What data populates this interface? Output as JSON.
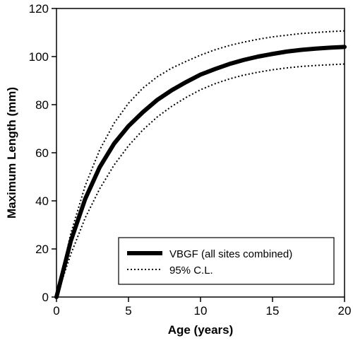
{
  "chart_data": {
    "type": "line",
    "title": "",
    "xlabel": "Age (years)",
    "ylabel": "Maximum Length (mm)",
    "xlim": [
      0,
      20
    ],
    "ylim": [
      0,
      120
    ],
    "x_ticks": [
      0,
      5,
      10,
      15,
      20
    ],
    "y_ticks": [
      0,
      20,
      40,
      60,
      80,
      100,
      120
    ],
    "grid": false,
    "legend_position": "bottom-right",
    "series": [
      {
        "name": "VBGF (all sites combined)",
        "style": "solid-thick",
        "color": "#000000",
        "x": [
          0,
          1,
          2,
          3,
          4,
          5,
          6,
          7,
          8,
          9,
          10,
          11,
          12,
          13,
          14,
          15,
          16,
          17,
          18,
          19,
          20
        ],
        "y": [
          0,
          23.4,
          40.9,
          54.0,
          63.8,
          71.1,
          76.9,
          82.0,
          86.0,
          89.4,
          92.5,
          94.8,
          96.9,
          98.6,
          100.0,
          101.1,
          102.1,
          102.8,
          103.3,
          103.7,
          104.0
        ]
      },
      {
        "name": "95% C.L.",
        "style": "dotted",
        "color": "#000000",
        "x": [
          0,
          1,
          2,
          3,
          4,
          5,
          6,
          7,
          8,
          9,
          10,
          11,
          12,
          13,
          14,
          15,
          16,
          17,
          18,
          19,
          20
        ],
        "y": [
          0,
          26.6,
          46.4,
          61.2,
          72.3,
          80.6,
          86.9,
          91.6,
          95.2,
          98.0,
          100.6,
          102.8,
          104.6,
          106.0,
          107.2,
          108.2,
          108.9,
          109.6,
          110.0,
          110.4,
          110.7
        ]
      },
      {
        "name": "",
        "style": "dotted",
        "color": "#000000",
        "x": [
          0,
          1,
          2,
          3,
          4,
          5,
          6,
          7,
          8,
          9,
          10,
          11,
          12,
          13,
          14,
          15,
          16,
          17,
          18,
          19,
          20
        ],
        "y": [
          0,
          17.9,
          33.0,
          45.0,
          54.9,
          62.9,
          69.5,
          74.9,
          79.3,
          83.0,
          86.2,
          88.7,
          90.7,
          92.3,
          93.5,
          94.5,
          95.3,
          95.9,
          96.3,
          96.6,
          96.9
        ]
      }
    ],
    "legend": [
      {
        "label": "VBGF (all sites combined)",
        "style": "solid-thick"
      },
      {
        "label": "95% C.L.",
        "style": "dotted"
      }
    ]
  }
}
